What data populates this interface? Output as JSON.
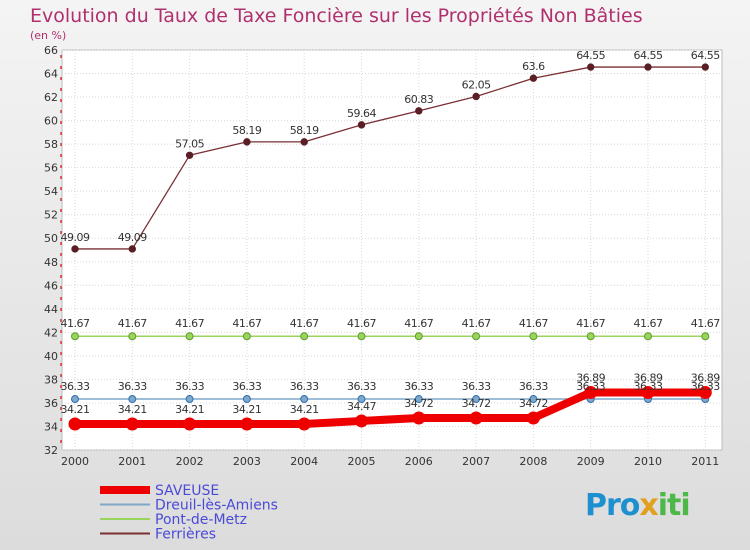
{
  "title": "Evolution du Taux de Taxe Foncière sur les Propriétés Non Bâties",
  "subtitle": "(en %)",
  "logo": "Proxiti",
  "chart_data": {
    "type": "line",
    "title": "Evolution du Taux de Taxe Foncière sur les Propriétés Non Bâties",
    "ylabel": "(en %)",
    "xlabel": "",
    "ylim": [
      32,
      66
    ],
    "yticks": [
      32,
      34,
      36,
      38,
      40,
      42,
      44,
      46,
      48,
      50,
      52,
      54,
      56,
      58,
      60,
      62,
      64,
      66
    ],
    "categories": [
      "2000",
      "2001",
      "2002",
      "2003",
      "2004",
      "2005",
      "2006",
      "2007",
      "2008",
      "2009",
      "2010",
      "2011"
    ],
    "grid": true,
    "legend_position": "bottom-left",
    "series": [
      {
        "name": "Ferrières",
        "color": "#7a2f35",
        "values": [
          49.09,
          49.09,
          57.05,
          58.19,
          58.19,
          59.64,
          60.83,
          62.05,
          63.6,
          64.55,
          64.55,
          64.55
        ],
        "labels": [
          "49.09",
          "49.09",
          "57.05",
          "58.19",
          "58.19",
          "59.64",
          "60.83",
          "62.05",
          "63.6",
          "64.55",
          "64.55",
          "64.55"
        ]
      },
      {
        "name": "Pont-de-Metz",
        "color": "#99d45c",
        "values": [
          41.67,
          41.67,
          41.67,
          41.67,
          41.67,
          41.67,
          41.67,
          41.67,
          41.67,
          41.67,
          41.67,
          41.67
        ],
        "labels": [
          "41.67",
          "41.67",
          "41.67",
          "41.67",
          "41.67",
          "41.67",
          "41.67",
          "41.67",
          "41.67",
          "41.67",
          "41.67",
          "41.67"
        ]
      },
      {
        "name": "Dreuil-lès-Amiens",
        "color": "#7fa7c8",
        "values": [
          36.33,
          36.33,
          36.33,
          36.33,
          36.33,
          36.33,
          36.33,
          36.33,
          36.33,
          36.33,
          36.33,
          36.33
        ],
        "labels": [
          "36.33",
          "36.33",
          "36.33",
          "36.33",
          "36.33",
          "36.33",
          "36.33",
          "36.33",
          "36.33",
          "36.33",
          "36.33",
          "36.33"
        ]
      },
      {
        "name": "SAVEUSE",
        "color": "#ee0000",
        "values": [
          34.21,
          34.21,
          34.21,
          34.21,
          34.21,
          34.47,
          34.72,
          34.72,
          34.72,
          36.89,
          36.89,
          36.89
        ],
        "labels": [
          "34.21",
          "34.21",
          "34.21",
          "34.21",
          "34.21",
          "34.47",
          "34.72",
          "34.72",
          "34.72",
          "36.89",
          "36.89",
          "36.89"
        ]
      }
    ],
    "legend": [
      "SAVEUSE",
      "Dreuil-lès-Amiens",
      "Pont-de-Metz",
      "Ferrières"
    ]
  }
}
